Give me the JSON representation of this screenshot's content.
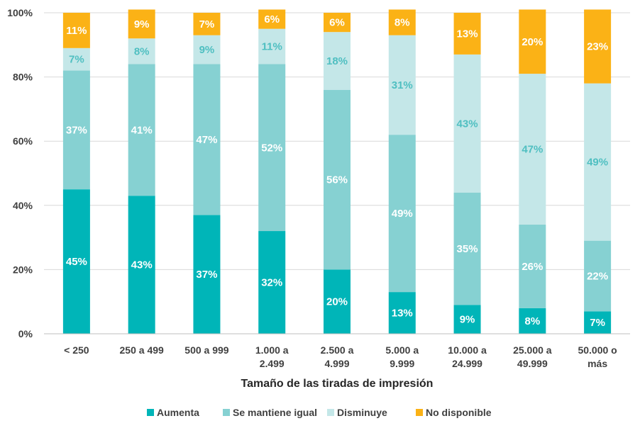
{
  "chart_data": {
    "type": "bar",
    "stacked": true,
    "categories": [
      [
        "< 250"
      ],
      [
        "250 a 499"
      ],
      [
        "500 a 999"
      ],
      [
        "1.000 a",
        "2.499"
      ],
      [
        "2.500 a",
        "4.999"
      ],
      [
        "5.000 a",
        "9.999"
      ],
      [
        "10.000 a",
        "24.999"
      ],
      [
        "25.000 a",
        "49.999"
      ],
      [
        "50.000 o",
        "más"
      ]
    ],
    "series": [
      {
        "name": "Aumenta",
        "color": "#00b5b8",
        "label_color": "#ffffff",
        "values": [
          45,
          43,
          37,
          32,
          20,
          13,
          9,
          8,
          7
        ]
      },
      {
        "name": "Se mantiene igual",
        "color": "#86d1d2",
        "label_color": "#ffffff",
        "values": [
          37,
          41,
          47,
          52,
          56,
          49,
          35,
          26,
          22
        ]
      },
      {
        "name": "Disminuye",
        "color": "#c4e7e8",
        "label_color": "#4fbfc1",
        "values": [
          7,
          8,
          9,
          11,
          18,
          31,
          43,
          47,
          49
        ]
      },
      {
        "name": "No disponible",
        "color": "#fbb216",
        "label_color": "#ffffff",
        "values": [
          11,
          9,
          7,
          6,
          6,
          8,
          13,
          20,
          23
        ]
      }
    ],
    "xlabel": "Tamaño de las tiradas de impresión",
    "ylabel": "",
    "ylim": [
      0,
      100
    ],
    "yticks": [
      "0%",
      "20%",
      "40%",
      "60%",
      "80%",
      "100%"
    ],
    "value_suffix": "%",
    "grid": true,
    "legend_position": "bottom"
  }
}
